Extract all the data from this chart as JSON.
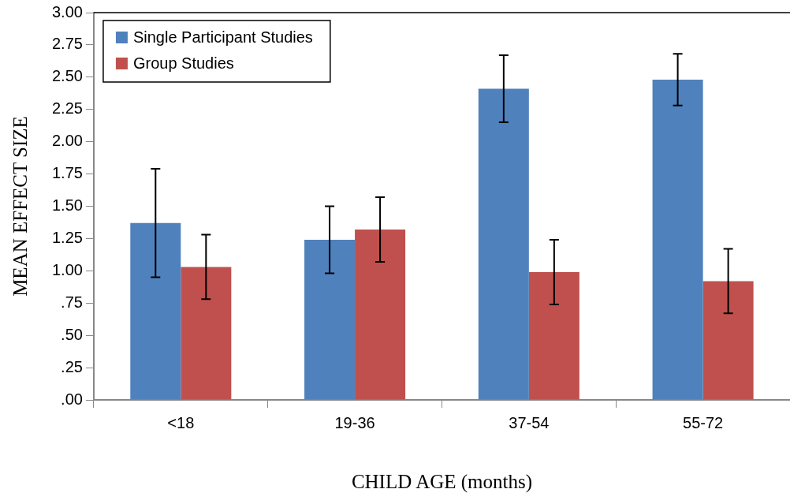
{
  "chart_data": {
    "type": "bar",
    "xlabel": "CHILD AGE (months)",
    "ylabel": "MEAN EFFECT SIZE",
    "categories": [
      "<18",
      "19-36",
      "37-54",
      "55-72"
    ],
    "series": [
      {
        "name": "Single Participant Studies",
        "color": "#4f81bd",
        "values": [
          1.37,
          1.24,
          2.41,
          2.48
        ],
        "errors": [
          0.42,
          0.26,
          0.26,
          0.2
        ]
      },
      {
        "name": "Group Studies",
        "color": "#c0504d",
        "values": [
          1.03,
          1.32,
          0.99,
          0.92
        ],
        "errors": [
          0.25,
          0.25,
          0.25,
          0.25
        ]
      }
    ],
    "ylim": [
      0,
      3
    ],
    "yticks": [
      {
        "value": 0,
        "label": ".00"
      },
      {
        "value": 0.25,
        "label": ".25"
      },
      {
        "value": 0.5,
        "label": ".50"
      },
      {
        "value": 0.75,
        "label": ".75"
      },
      {
        "value": 1,
        "label": "1.00"
      },
      {
        "value": 1.25,
        "label": "1.25"
      },
      {
        "value": 1.5,
        "label": "1.50"
      },
      {
        "value": 1.75,
        "label": "1.75"
      },
      {
        "value": 2,
        "label": "2.00"
      },
      {
        "value": 2.25,
        "label": "2.25"
      },
      {
        "value": 2.5,
        "label": "2.50"
      },
      {
        "value": 2.75,
        "label": "2.75"
      },
      {
        "value": 3,
        "label": "3.00"
      }
    ],
    "legend": "top left"
  }
}
